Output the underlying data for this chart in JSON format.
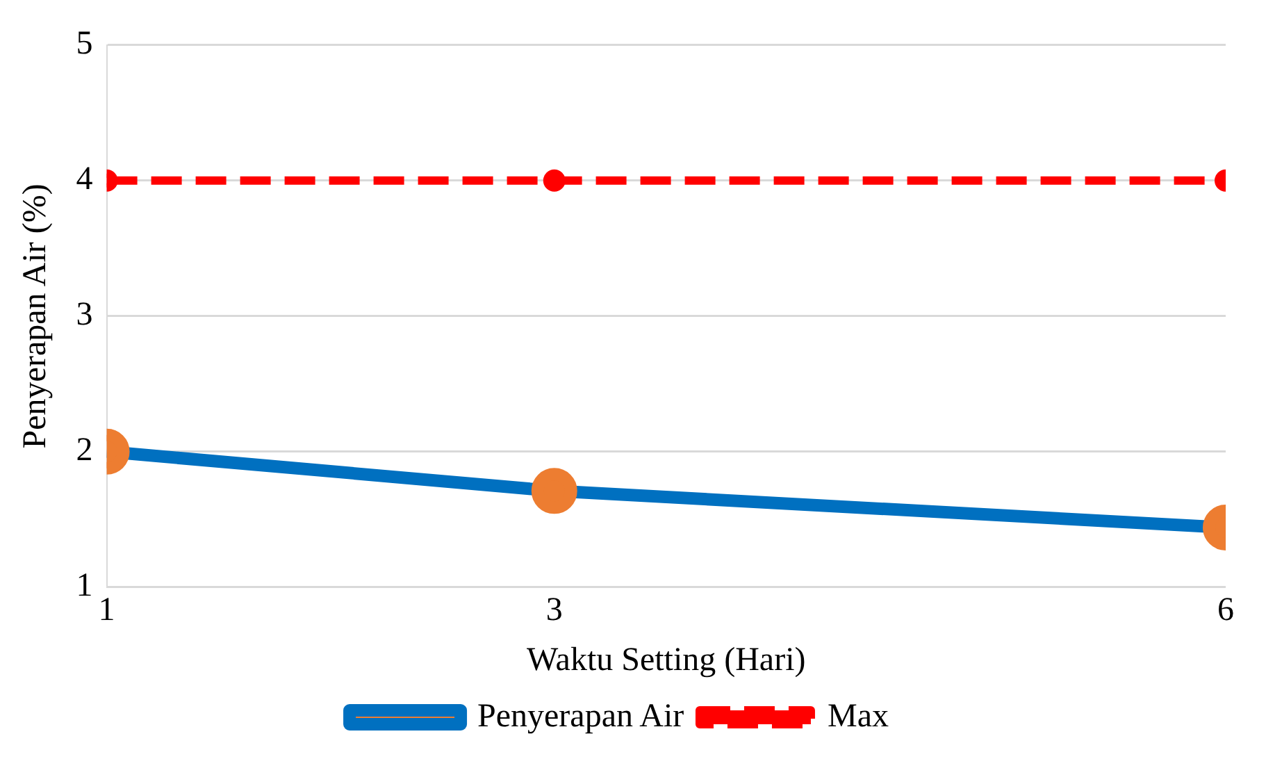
{
  "chart_data": {
    "type": "line",
    "xlabel": "Waktu Setting (Hari)",
    "ylabel": "Penyerapan Air (%)",
    "x": [
      1,
      3,
      6
    ],
    "xlim": [
      1,
      6
    ],
    "xticks": [
      1,
      3,
      6
    ],
    "ylim": [
      1,
      5
    ],
    "yticks": [
      1,
      2,
      3,
      4,
      5
    ],
    "grid": "y",
    "legend": "bottom",
    "marker": "circle",
    "series": [
      {
        "name": "Penyerapan Air",
        "color": "#0070c0",
        "colors": [
          "#ed7d31",
          "#ed7d31",
          "#ed7d31"
        ],
        "values": [
          2.0,
          1.71,
          1.44
        ],
        "line_style": "solid"
      },
      {
        "name": "Max",
        "color": "#ff0000",
        "values": [
          4,
          4,
          4
        ],
        "line_style": "dashed"
      }
    ]
  }
}
